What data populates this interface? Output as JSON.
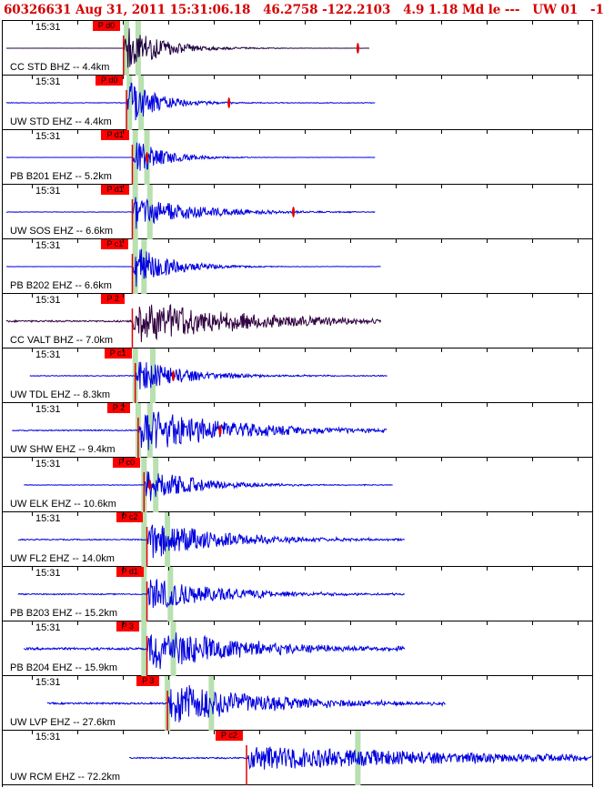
{
  "header": {
    "event_id": "60326631",
    "date": "Aug 31, 2011",
    "time": "15:31:06.18",
    "lat": "46.2758",
    "lon": "-122.2103",
    "depth": "4.9",
    "magnitude": "1.18",
    "mag_type": "Md",
    "quality": "le ---",
    "network": "UW 01",
    "flag": "-1"
  },
  "chart_data": {
    "type": "seismogram",
    "panel_time_label": "15:31",
    "stations": [
      {
        "label": "CC STD BHZ -- 4.4km",
        "phase": "P d0",
        "color": "#200040",
        "start": 0,
        "end": 0.62,
        "onset": 0.2,
        "amp": 1.0,
        "decay": 0.06,
        "noise": 0.01,
        "green": [
          0.205,
          0.225
        ],
        "ticks": [
          0.6
        ]
      },
      {
        "label": "UW STD EHZ -- 4.4km",
        "phase": "P d0",
        "color": "#0000e0",
        "start": 0,
        "end": 0.63,
        "onset": 0.205,
        "amp": 1.0,
        "decay": 0.05,
        "noise": 0.05,
        "green": [
          0.21,
          0.23
        ],
        "ticks": [
          0.38
        ]
      },
      {
        "label": "PB B201 EHZ -- 5.2km",
        "phase": "P d1",
        "color": "#0000e0",
        "start": 0,
        "end": 0.63,
        "onset": 0.215,
        "amp": 0.8,
        "decay": 0.05,
        "noise": 0.01,
        "green": [
          0.22,
          0.24
        ],
        "ticks": [
          0.24
        ]
      },
      {
        "label": "UW SOS EHZ -- 6.6km",
        "phase": "P d1",
        "color": "#0000e0",
        "start": 0,
        "end": 0.63,
        "onset": 0.215,
        "amp": 0.7,
        "decay": 0.1,
        "noise": 0.04,
        "green": [
          0.22,
          0.245
        ],
        "ticks": [
          0.49
        ]
      },
      {
        "label": "PB B202 EHZ -- 6.6km",
        "phase": "P c1",
        "color": "#0000e0",
        "start": 0,
        "end": 0.64,
        "onset": 0.215,
        "amp": 0.9,
        "decay": 0.06,
        "noise": 0.02,
        "green": [
          0.22,
          0.235
        ],
        "ticks": []
      },
      {
        "label": "CC VALT BHZ -- 7.0km",
        "phase": "P 2",
        "color": "#300040",
        "start": 0,
        "end": 0.64,
        "onset": 0.215,
        "amp": 0.9,
        "decay": 0.18,
        "noise": 0.15,
        "green": [],
        "ticks": []
      },
      {
        "label": "UW TDL EHZ -- 8.3km",
        "phase": "P c1",
        "color": "#0000e0",
        "start": 0.04,
        "end": 0.65,
        "onset": 0.22,
        "amp": 0.7,
        "decay": 0.08,
        "noise": 0.07,
        "green": [
          0.22,
          0.25
        ],
        "ticks": [
          0.285
        ]
      },
      {
        "label": "UW SHW EHZ -- 9.4km",
        "phase": "P 2",
        "color": "#0000e0",
        "start": 0.01,
        "end": 0.65,
        "onset": 0.225,
        "amp": 0.95,
        "decay": 0.15,
        "noise": 0.1,
        "green": [
          0.225,
          0.245
        ],
        "ticks": [
          0.365
        ]
      },
      {
        "label": "UW ELK EHZ -- 10.6km",
        "phase": "P c0",
        "color": "#0000e0",
        "start": 0.03,
        "end": 0.66,
        "onset": 0.235,
        "amp": 0.8,
        "decay": 0.08,
        "noise": 0.05,
        "green": [
          0.235,
          0.255
        ],
        "ticks": [
          0.245
        ]
      },
      {
        "label": "UW FL2 EHZ -- 14.0km",
        "phase": "P c2",
        "color": "#0000e0",
        "start": 0.02,
        "end": 0.68,
        "onset": 0.24,
        "amp": 0.8,
        "decay": 0.12,
        "noise": 0.1,
        "green": [
          0.235,
          0.275
        ],
        "ticks": []
      },
      {
        "label": "PB B203 EHZ -- 15.2km",
        "phase": "P d1",
        "color": "#0000e0",
        "start": 0.02,
        "end": 0.68,
        "onset": 0.24,
        "amp": 0.7,
        "decay": 0.12,
        "noise": 0.1,
        "green": [
          0.235,
          0.28
        ],
        "ticks": []
      },
      {
        "label": "PB B204 EHZ -- 15.9km",
        "phase": "P 3",
        "color": "#0000e0",
        "start": 0.03,
        "end": 0.68,
        "onset": 0.24,
        "amp": 0.9,
        "decay": 0.15,
        "noise": 0.2,
        "green": [
          0.235,
          0.285
        ],
        "ticks": []
      },
      {
        "label": "UW LVP EHZ -- 27.6km",
        "phase": "P 3",
        "color": "#0000e0",
        "start": 0.07,
        "end": 0.75,
        "onset": 0.275,
        "amp": 0.9,
        "decay": 0.15,
        "noise": 0.15,
        "green": [
          0.275,
          0.35
        ],
        "ticks": []
      },
      {
        "label": "UW RCM EHZ -- 72.2km",
        "phase": "P c2",
        "color": "#0000e0",
        "start": 0.21,
        "end": 1.0,
        "onset": 0.41,
        "amp": 0.5,
        "decay": 0.4,
        "noise": 0.12,
        "green": [
          0.6
        ],
        "ticks": []
      }
    ]
  }
}
